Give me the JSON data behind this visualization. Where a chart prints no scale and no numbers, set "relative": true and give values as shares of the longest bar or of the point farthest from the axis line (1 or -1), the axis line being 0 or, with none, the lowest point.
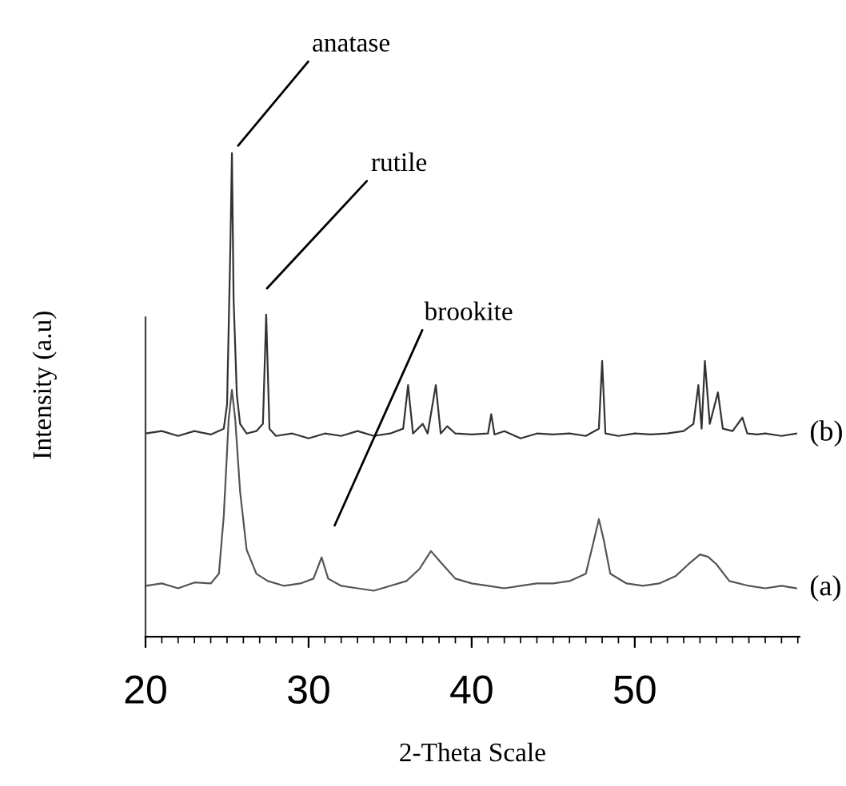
{
  "chart_data": {
    "type": "line",
    "relative": true,
    "xlabel": "2-Theta Scale",
    "ylabel": "Intensity (a.u)",
    "xlim": [
      20,
      60.1
    ],
    "xticks": [
      20,
      30,
      40,
      50
    ],
    "grid": false,
    "legend": false,
    "marker": "none",
    "line_style": "solid",
    "annotations": [
      {
        "text": "anatase",
        "x": 25.3,
        "y": 1.0
      },
      "rutile",
      "brookite"
    ],
    "series": [
      {
        "name": "(a)",
        "color": "#555555",
        "x": [
          20,
          21,
          22,
          23,
          24,
          24.5,
          24.8,
          25.1,
          25.3,
          25.5,
          25.8,
          26.2,
          26.8,
          27.5,
          28.5,
          29.5,
          30.3,
          30.8,
          31.2,
          32,
          33,
          34,
          35,
          36,
          36.8,
          37.5,
          38.2,
          39,
          40,
          41,
          42,
          43,
          44,
          45,
          46,
          47,
          47.5,
          47.8,
          48.1,
          48.5,
          49.5,
          50.5,
          51.5,
          52.5,
          53.3,
          54.0,
          54.5,
          55,
          55.8,
          57,
          58,
          59,
          59.9
        ],
        "values": [
          0.105,
          0.11,
          0.1,
          0.112,
          0.11,
          0.13,
          0.25,
          0.45,
          0.51,
          0.45,
          0.3,
          0.18,
          0.13,
          0.115,
          0.105,
          0.11,
          0.12,
          0.164,
          0.12,
          0.105,
          0.1,
          0.095,
          0.105,
          0.115,
          0.14,
          0.177,
          0.15,
          0.12,
          0.11,
          0.105,
          0.1,
          0.105,
          0.11,
          0.11,
          0.115,
          0.13,
          0.2,
          0.243,
          0.2,
          0.13,
          0.11,
          0.105,
          0.11,
          0.125,
          0.15,
          0.17,
          0.165,
          0.15,
          0.115,
          0.105,
          0.1,
          0.105,
          0.1
        ]
      },
      {
        "name": "(b)",
        "color": "#333333",
        "x": [
          20,
          21,
          22,
          23,
          24,
          24.8,
          25.0,
          25.2,
          25.3,
          25.4,
          25.6,
          25.8,
          26.2,
          26.8,
          27.2,
          27.4,
          27.6,
          28,
          29,
          30,
          31,
          32,
          33,
          34,
          35,
          35.8,
          36.1,
          36.4,
          37.0,
          37.3,
          37.8,
          38.1,
          38.5,
          39,
          40,
          41,
          41.2,
          41.4,
          42,
          43,
          44,
          45,
          46,
          47,
          47.8,
          48.0,
          48.2,
          49,
          50,
          51,
          52,
          53,
          53.6,
          53.9,
          54.1,
          54.3,
          54.6,
          55.1,
          55.4,
          56,
          56.6,
          56.9,
          57.5,
          58,
          59,
          59.9
        ],
        "values": [
          0.42,
          0.425,
          0.415,
          0.425,
          0.418,
          0.43,
          0.48,
          0.8,
          1.0,
          0.7,
          0.5,
          0.44,
          0.42,
          0.425,
          0.44,
          0.666,
          0.43,
          0.415,
          0.42,
          0.41,
          0.42,
          0.415,
          0.425,
          0.415,
          0.42,
          0.43,
          0.52,
          0.42,
          0.44,
          0.42,
          0.52,
          0.42,
          0.435,
          0.42,
          0.418,
          0.42,
          0.46,
          0.418,
          0.425,
          0.41,
          0.42,
          0.418,
          0.42,
          0.415,
          0.43,
          0.57,
          0.42,
          0.415,
          0.42,
          0.418,
          0.42,
          0.425,
          0.44,
          0.52,
          0.43,
          0.57,
          0.44,
          0.505,
          0.43,
          0.425,
          0.453,
          0.42,
          0.418,
          0.42,
          0.415,
          0.42
        ]
      }
    ]
  }
}
